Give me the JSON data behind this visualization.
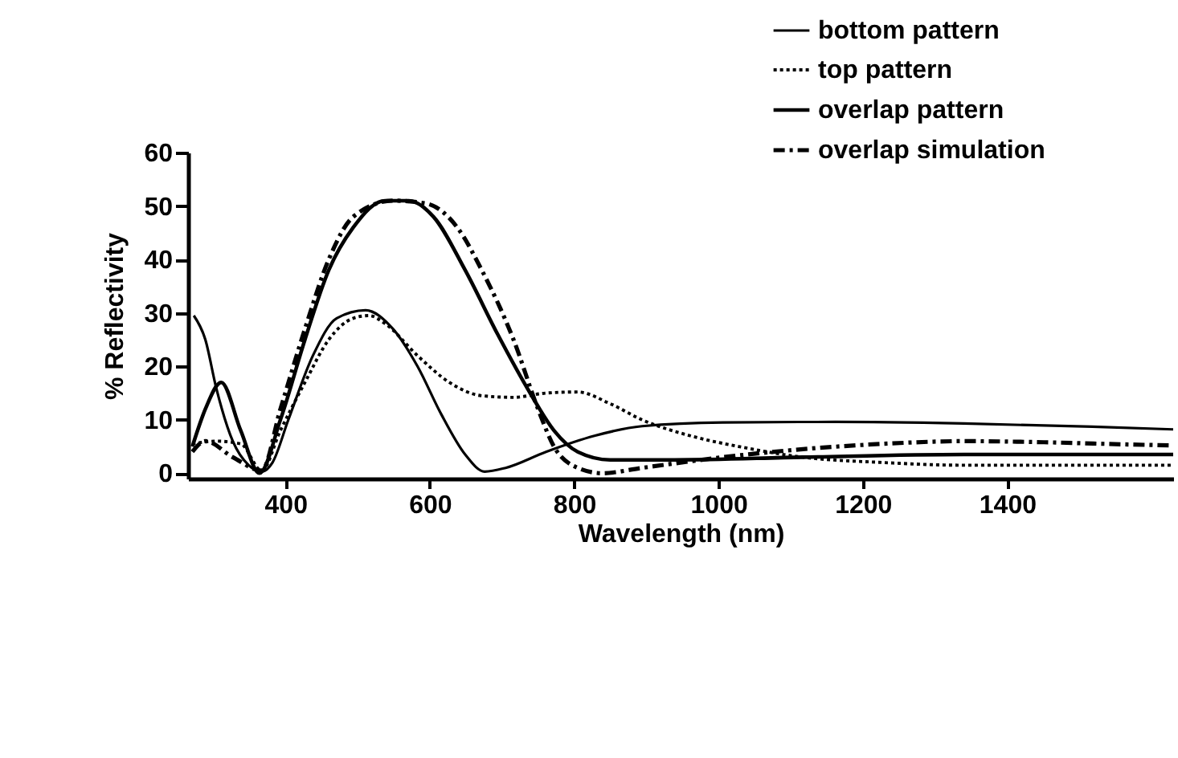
{
  "chart_data": {
    "type": "line",
    "xlabel": "Wavelength (nm)",
    "ylabel": "% Reflectivity",
    "xlim": [
      265,
      1630
    ],
    "ylim": [
      -1,
      60
    ],
    "xticks": [
      400,
      600,
      800,
      {
        "value": 1000,
        "label": "1000"
      },
      {
        "value": 1200,
        "label": "1200"
      },
      {
        "value": 1400,
        "label": "1400"
      }
    ],
    "yticks": [
      0,
      10,
      20,
      30,
      40,
      50,
      60
    ],
    "grid": false,
    "legend": "top right",
    "marker": "none",
    "series": [
      {
        "name": "bottom pattern",
        "color": "#000000",
        "line_style": "solid",
        "x": [
          273,
          289,
          304,
          327,
          349,
          367,
          382,
          404,
          438,
          471,
          511,
          549,
          583,
          616,
          649,
          676,
          705,
          761,
          828,
          894,
          1006,
          1162,
          1340,
          1518,
          1630
        ],
        "values": [
          29.5,
          25,
          16,
          6,
          1.5,
          0.3,
          2,
          10,
          22,
          29,
          30.5,
          27,
          20,
          11,
          3.5,
          0.3,
          1,
          4,
          7,
          8.8,
          9.5,
          9.6,
          9.3,
          8.7,
          8.2
        ]
      },
      {
        "name": "top pattern",
        "color": "#000000",
        "line_style": "dotted",
        "x": [
          271,
          304,
          338,
          367,
          393,
          427,
          460,
          494,
          516,
          538,
          583,
          627,
          672,
          716,
          761,
          805,
          850,
          894,
          961,
          1028,
          1117,
          1228,
          1340,
          1630
        ],
        "values": [
          5.5,
          6,
          5.5,
          0.5,
          8,
          17,
          25,
          29,
          29.5,
          28,
          22,
          17,
          14.5,
          14.2,
          15,
          15.2,
          13,
          10,
          7,
          5,
          3,
          2,
          1.5,
          1.5
        ]
      },
      {
        "name": "overlap pattern",
        "color": "#000000",
        "line_style": "solid",
        "x": [
          271,
          289,
          311,
          338,
          364,
          393,
          427,
          460,
          494,
          538,
          571,
          605,
          649,
          694,
          739,
          772,
          805,
          850,
          939,
          1117,
          1340,
          1630
        ],
        "values": [
          5,
          12,
          17,
          8,
          0,
          10,
          25,
          38,
          46,
          51,
          51,
          48,
          38,
          26,
          15,
          8,
          4,
          2.5,
          2.5,
          3,
          3.5,
          3.5
        ]
      },
      {
        "name": "overlap simulation",
        "color": "#000000",
        "line_style": "dashdot",
        "x": [
          271,
          289,
          327,
          367,
          393,
          427,
          460,
          494,
          549,
          594,
          638,
          672,
          716,
          750,
          772,
          805,
          839,
          894,
          1006,
          1117,
          1228,
          1340,
          1451,
          1562,
          1630
        ],
        "values": [
          4,
          6,
          3,
          0.5,
          12,
          27,
          40,
          48,
          51,
          50.5,
          46,
          38,
          25,
          12,
          5,
          1,
          0,
          1,
          3,
          4.5,
          5.5,
          6,
          5.8,
          5.4,
          5.2
        ]
      }
    ]
  }
}
